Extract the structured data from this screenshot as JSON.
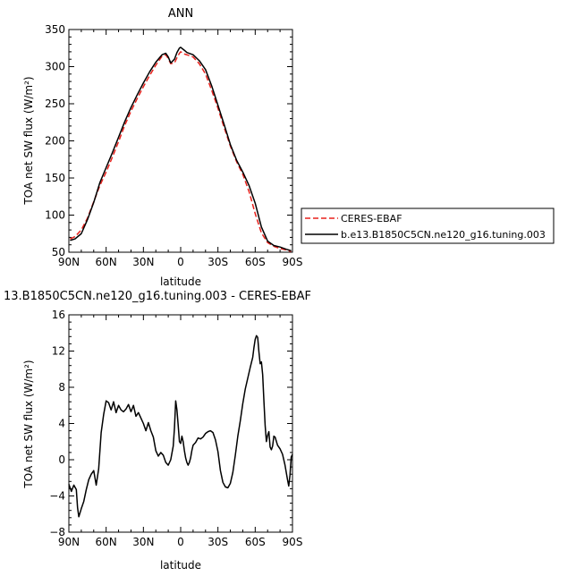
{
  "chart_data": [
    {
      "type": "line",
      "title": "ANN",
      "xlabel": "latitude",
      "ylabel": "TOA net SW flux (W/m²)",
      "xlim": [
        90,
        -90
      ],
      "ylim": [
        50,
        350
      ],
      "x_ticks": [
        90,
        60,
        30,
        0,
        -30,
        -60,
        -90
      ],
      "x_tick_labels": [
        "90N",
        "60N",
        "30N",
        "0",
        "30S",
        "60S",
        "90S"
      ],
      "y_ticks": [
        50,
        100,
        150,
        200,
        250,
        300,
        350
      ],
      "y_tick_labels": [
        "50",
        "100",
        "150",
        "200",
        "250",
        "300",
        "350"
      ],
      "legend_position": "right",
      "series": [
        {
          "name": "CERES-EBAF",
          "color": "#e8211c",
          "dash": "dashed",
          "x": [
            89,
            85,
            80,
            75,
            70,
            65,
            60,
            55,
            50,
            45,
            40,
            35,
            30,
            25,
            20,
            15,
            12,
            10,
            8,
            5,
            3,
            1,
            0,
            -3,
            -5,
            -10,
            -15,
            -20,
            -25,
            -30,
            -35,
            -40,
            -45,
            -50,
            -55,
            -60,
            -65,
            -70,
            -75,
            -80,
            -85,
            -89
          ],
          "y": [
            68,
            71,
            80,
            96,
            118,
            140,
            158,
            178,
            199,
            221,
            240,
            257,
            273,
            288,
            302,
            314,
            316,
            311,
            304,
            305,
            312,
            318,
            320,
            317,
            316,
            313,
            304,
            290,
            268,
            244,
            218,
            193,
            172,
            155,
            132,
            102,
            76,
            63,
            58,
            55,
            53,
            51
          ]
        },
        {
          "name": "b.e13.B1850C5CN.ne120_g16.tuning.003",
          "color": "#000000",
          "dash": "solid",
          "x": [
            89,
            85,
            80,
            75,
            70,
            65,
            60,
            55,
            50,
            45,
            40,
            35,
            30,
            25,
            20,
            15,
            12,
            10,
            8,
            5,
            3,
            1,
            0,
            -3,
            -5,
            -10,
            -15,
            -20,
            -25,
            -30,
            -35,
            -40,
            -45,
            -50,
            -55,
            -60,
            -65,
            -70,
            -75,
            -80,
            -85,
            -89
          ],
          "y": [
            66,
            68,
            75,
            94,
            117,
            144,
            164,
            184,
            205,
            226,
            245,
            262,
            278,
            293,
            306,
            316,
            318,
            313,
            305,
            310,
            319,
            325,
            326,
            322,
            319,
            316,
            308,
            296,
            274,
            248,
            222,
            195,
            174,
            158,
            140,
            116,
            84,
            65,
            59,
            57,
            54,
            52
          ]
        }
      ]
    },
    {
      "type": "line",
      "title": "13.B1850C5CN.ne120_g16.tuning.003 - CERES-EBAF",
      "xlabel": "latitude",
      "ylabel": "TOA net SW flux (W/m²)",
      "xlim": [
        90,
        -90
      ],
      "ylim": [
        -8,
        16
      ],
      "x_ticks": [
        90,
        60,
        30,
        0,
        -30,
        -60,
        -90
      ],
      "x_tick_labels": [
        "90N",
        "60N",
        "30N",
        "0",
        "30S",
        "60S",
        "90S"
      ],
      "y_ticks": [
        -8,
        -4,
        0,
        4,
        8,
        12,
        16
      ],
      "y_tick_labels": [
        "−8",
        "−4",
        "0",
        "4",
        "8",
        "12",
        "16"
      ],
      "series": [
        {
          "color": "#000000",
          "dash": "solid",
          "x": [
            90,
            88,
            86,
            84,
            83,
            82,
            80,
            78,
            76,
            74,
            72,
            70,
            68,
            66,
            64,
            62,
            60,
            58,
            56,
            54,
            52,
            50,
            48,
            46,
            44,
            42,
            40,
            38,
            36,
            34,
            32,
            30,
            28,
            26,
            24,
            22,
            20,
            18,
            16,
            14,
            12,
            10,
            8,
            6,
            5,
            4,
            3,
            2,
            1,
            0,
            -1,
            -2,
            -3,
            -4,
            -5,
            -6,
            -7,
            -8,
            -9,
            -10,
            -12,
            -14,
            -16,
            -18,
            -20,
            -22,
            -24,
            -26,
            -28,
            -30,
            -32,
            -34,
            -36,
            -38,
            -40,
            -42,
            -44,
            -46,
            -48,
            -50,
            -52,
            -54,
            -56,
            -58,
            -59,
            -60,
            -61,
            -62,
            -63,
            -64,
            -65,
            -66,
            -67,
            -68,
            -69,
            -70,
            -71,
            -72,
            -73,
            -74,
            -75,
            -76,
            -78,
            -80,
            -82,
            -84,
            -86,
            -87,
            -88,
            -89,
            -90
          ],
          "y": [
            -2.7,
            -3.5,
            -2.8,
            -3.3,
            -5.3,
            -6.3,
            -5.4,
            -4.6,
            -3.3,
            -2.2,
            -1.6,
            -1.2,
            -2.8,
            -1.0,
            3.0,
            5.0,
            6.5,
            6.3,
            5.5,
            6.4,
            5.2,
            6.0,
            5.5,
            5.3,
            5.6,
            6.1,
            5.3,
            6.0,
            4.8,
            5.2,
            4.6,
            4.0,
            3.2,
            4.1,
            3.2,
            2.5,
            1.0,
            0.4,
            0.8,
            0.5,
            -0.3,
            -0.6,
            0.0,
            1.5,
            3.5,
            6.5,
            5.5,
            3.8,
            2.0,
            1.8,
            2.6,
            2.0,
            1.0,
            0.2,
            -0.3,
            -0.6,
            -0.3,
            0.2,
            1.0,
            1.6,
            1.9,
            2.4,
            2.3,
            2.5,
            2.9,
            3.1,
            3.2,
            3.0,
            2.2,
            0.9,
            -1.2,
            -2.5,
            -3.0,
            -3.1,
            -2.6,
            -1.4,
            0.5,
            2.6,
            4.3,
            6.2,
            7.8,
            9.0,
            10.2,
            11.3,
            12.4,
            13.3,
            13.7,
            13.5,
            11.9,
            10.6,
            10.8,
            9.4,
            6.5,
            3.8,
            2.0,
            2.7,
            3.1,
            1.4,
            1.1,
            1.5,
            2.6,
            2.5,
            1.6,
            1.2,
            0.6,
            -0.6,
            -2.2,
            -2.9,
            -1.7,
            0.3,
            0.6
          ]
        }
      ]
    }
  ]
}
